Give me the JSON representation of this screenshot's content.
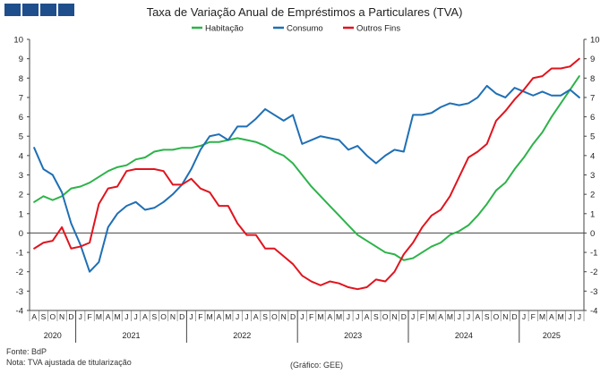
{
  "header": {
    "title": "Taxa de Variação Anual de Empréstimos a Particulares (TVA)"
  },
  "footer": {
    "source": "Fonte: BdP",
    "note": "Nota: TVA ajustada de titularização",
    "credit": "(Gráfico: GEE)"
  },
  "chart_data": {
    "type": "line",
    "title": "Taxa de Variação Anual de Empréstimos a Particulares (TVA)",
    "xlabel": "",
    "ylabel": "",
    "ylim": [
      -4,
      10
    ],
    "yticks": [
      -4,
      -3,
      -2,
      -1,
      0,
      1,
      2,
      3,
      4,
      5,
      6,
      7,
      8,
      9,
      10
    ],
    "dual_y_axis": true,
    "grid": false,
    "legend": "top",
    "x": [
      "A",
      "S",
      "O",
      "N",
      "D",
      "J",
      "F",
      "M",
      "A",
      "M",
      "J",
      "J",
      "A",
      "S",
      "O",
      "N",
      "D",
      "J",
      "F",
      "M",
      "A",
      "M",
      "J",
      "J",
      "A",
      "S",
      "O",
      "N",
      "D",
      "J",
      "F",
      "M",
      "A",
      "M",
      "J",
      "J",
      "A",
      "S",
      "O",
      "N",
      "D",
      "J",
      "F",
      "M",
      "A",
      "M",
      "J",
      "J",
      "A",
      "S",
      "O",
      "N",
      "D",
      "J",
      "F",
      "M",
      "A",
      "M",
      "J",
      "J"
    ],
    "years": [
      {
        "label": "2020",
        "start": 0,
        "end": 4
      },
      {
        "label": "2021",
        "start": 5,
        "end": 16
      },
      {
        "label": "2022",
        "start": 17,
        "end": 28
      },
      {
        "label": "2023",
        "start": 29,
        "end": 40
      },
      {
        "label": "2024",
        "start": 41,
        "end": 52
      },
      {
        "label": "2025",
        "start": 53,
        "end": 59
      }
    ],
    "series": [
      {
        "name": "Habitação",
        "color": "#2db34a",
        "values": [
          1.6,
          1.9,
          1.7,
          1.9,
          2.3,
          2.4,
          2.6,
          2.9,
          3.2,
          3.4,
          3.5,
          3.8,
          3.9,
          4.2,
          4.3,
          4.3,
          4.4,
          4.4,
          4.5,
          4.7,
          4.7,
          4.8,
          4.9,
          4.8,
          4.7,
          4.5,
          4.2,
          4.0,
          3.6,
          3.0,
          2.4,
          1.9,
          1.4,
          0.9,
          0.4,
          -0.1,
          -0.4,
          -0.7,
          -1.0,
          -1.1,
          -1.4,
          -1.3,
          -1.0,
          -0.7,
          -0.5,
          -0.1,
          0.1,
          0.4,
          0.9,
          1.5,
          2.2,
          2.6,
          3.3,
          3.9,
          4.6,
          5.2,
          6.0,
          6.7,
          7.4,
          8.1
        ]
      },
      {
        "name": "Consumo",
        "color": "#1f6fb5",
        "values": [
          4.4,
          3.3,
          3.0,
          2.1,
          0.5,
          -0.6,
          -2.0,
          -1.5,
          0.3,
          1.0,
          1.4,
          1.6,
          1.2,
          1.3,
          1.6,
          2.0,
          2.5,
          3.3,
          4.3,
          5.0,
          5.1,
          4.8,
          5.5,
          5.5,
          5.9,
          6.4,
          6.1,
          5.8,
          6.1,
          4.6,
          4.8,
          5.0,
          4.9,
          4.8,
          4.3,
          4.5,
          4.0,
          3.6,
          4.0,
          4.3,
          4.2,
          6.1,
          6.1,
          6.2,
          6.5,
          6.7,
          6.6,
          6.7,
          7.0,
          7.6,
          7.2,
          7.0,
          7.5,
          7.3,
          7.1,
          7.3,
          7.1,
          7.1,
          7.4,
          7.0
        ]
      },
      {
        "name": "Outros Fins",
        "color": "#e0141e",
        "values": [
          -0.8,
          -0.5,
          -0.4,
          0.3,
          -0.8,
          -0.7,
          -0.5,
          1.5,
          2.3,
          2.4,
          3.2,
          3.3,
          3.3,
          3.3,
          3.2,
          2.5,
          2.5,
          2.8,
          2.3,
          2.1,
          1.4,
          1.4,
          0.5,
          -0.1,
          -0.1,
          -0.8,
          -0.8,
          -1.2,
          -1.6,
          -2.2,
          -2.5,
          -2.7,
          -2.5,
          -2.6,
          -2.8,
          -2.9,
          -2.8,
          -2.4,
          -2.5,
          -2.0,
          -1.1,
          -0.5,
          0.3,
          0.9,
          1.2,
          1.9,
          2.9,
          3.9,
          4.2,
          4.6,
          5.8,
          6.3,
          6.9,
          7.4,
          8.0,
          8.1,
          8.5,
          8.5,
          8.6,
          9.0
        ]
      }
    ]
  }
}
